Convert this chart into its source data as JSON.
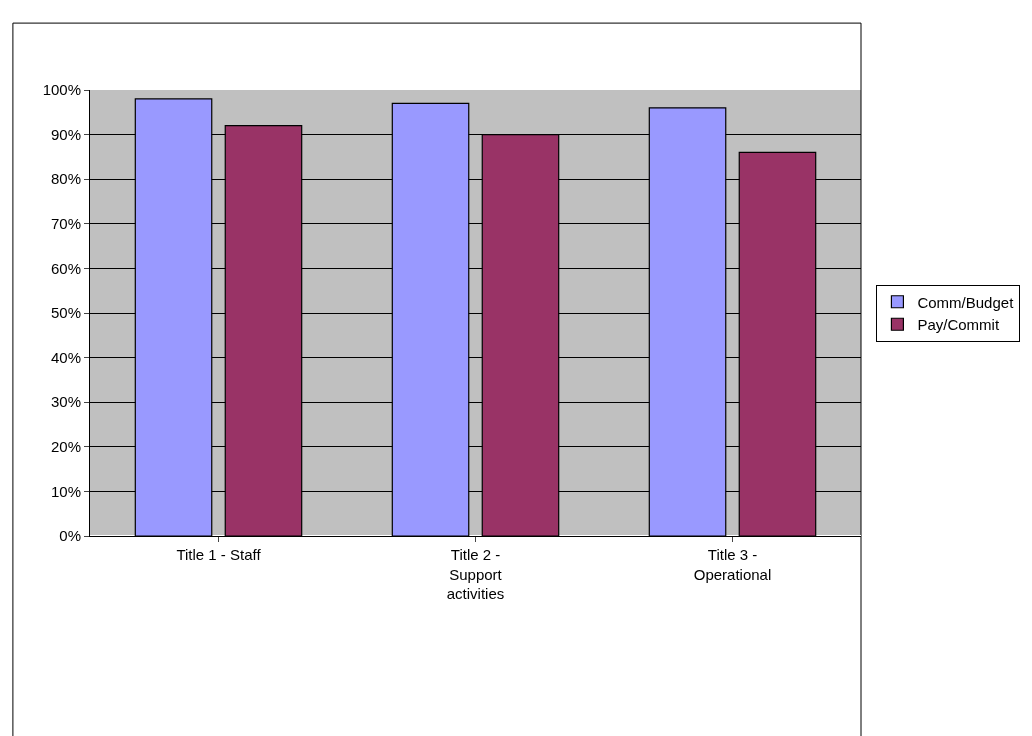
{
  "chart_data": {
    "type": "bar",
    "categories": [
      "Title 1 - Staff",
      "Title 2 - Support activities",
      "Title 3 - Operational"
    ],
    "series": [
      {
        "name": "Comm/Budget",
        "color": "#9999ff",
        "values": [
          0.98,
          0.97,
          0.96
        ]
      },
      {
        "name": "Pay/Commit",
        "color": "#993366",
        "values": [
          0.92,
          0.9,
          0.86
        ]
      }
    ],
    "ylim": [
      0,
      1
    ],
    "yticks": [
      {
        "value": 0,
        "label": "0%"
      },
      {
        "value": 0.1,
        "label": "10%"
      },
      {
        "value": 0.2,
        "label": "20%"
      },
      {
        "value": 0.3,
        "label": "30%"
      },
      {
        "value": 0.4,
        "label": "40%"
      },
      {
        "value": 0.5,
        "label": "50%"
      },
      {
        "value": 0.6,
        "label": "60%"
      },
      {
        "value": 0.7,
        "label": "70%"
      },
      {
        "value": 0.8,
        "label": "80%"
      },
      {
        "value": 0.9,
        "label": "90%"
      },
      {
        "value": 1,
        "label": "100%"
      }
    ],
    "grid": "y",
    "legend": "right"
  }
}
